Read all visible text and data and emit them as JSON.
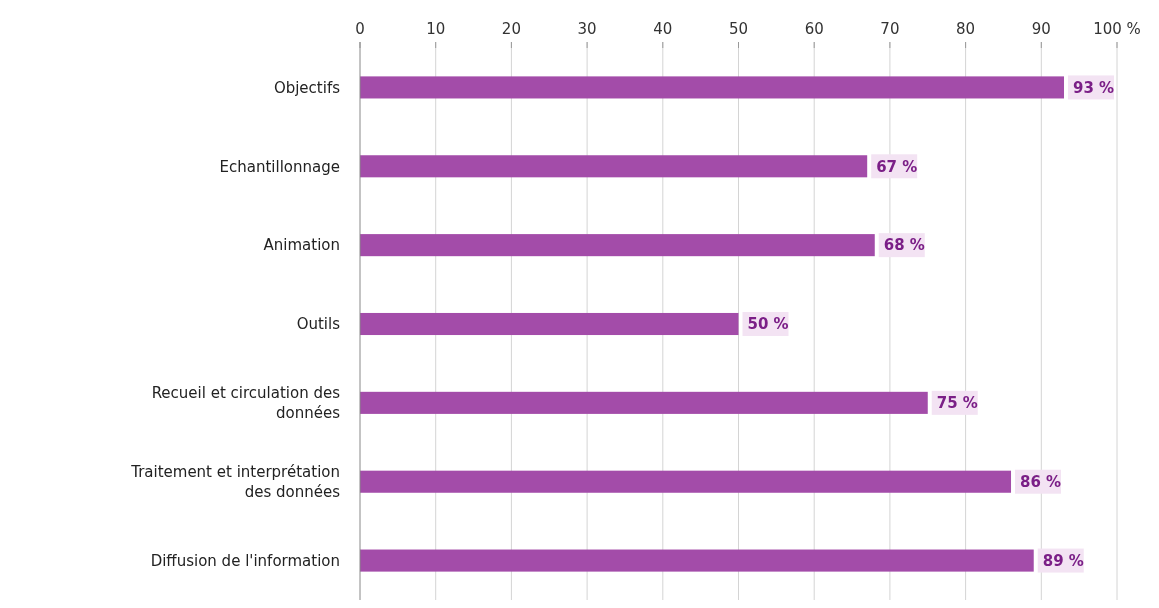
{
  "chart_data": {
    "type": "bar",
    "orientation": "horizontal",
    "categories": [
      "Objectifs",
      "Echantillonnage",
      "Animation",
      "Outils",
      "Recueil et circulation des données",
      "Traitement et interprétation des données",
      "Diffusion de l'information"
    ],
    "values": [
      93,
      67,
      68,
      50,
      75,
      86,
      89
    ],
    "value_labels": [
      "93 %",
      "67 %",
      "68 %",
      "50 %",
      "75 %",
      "86 %",
      "89 %"
    ],
    "color": "#a34ca9",
    "xlim": [
      0,
      100
    ],
    "xticks": [
      0,
      10,
      20,
      30,
      40,
      50,
      60,
      70,
      80,
      90,
      {
        "value": 100,
        "label": "100 %"
      }
    ],
    "grid": "x"
  }
}
